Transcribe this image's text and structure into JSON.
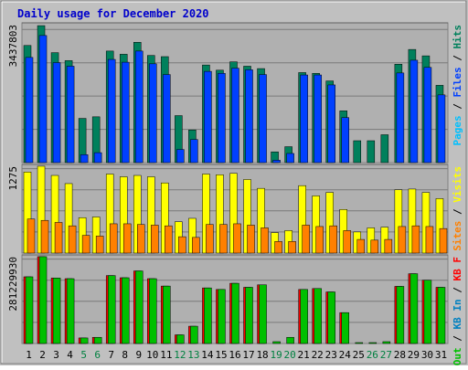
{
  "title": "Daily usage for December 2020",
  "colors": {
    "background": "#c0c0c0",
    "panel": "#b0b0b0",
    "grid": "#7a7a7a",
    "title": "#0000cc",
    "weekday_label": "#000000",
    "weekend_label": "#008040",
    "hits": "#00805c",
    "files": "#0040ff",
    "pages": "#00c0ff",
    "visits": "#ffff00",
    "sites": "#ff8000",
    "kb_in": "#0080c0",
    "kb_out": "#00c000",
    "kb_f": "#ff0000"
  },
  "chart_data": [
    {
      "type": "bar",
      "ylabel": "3437803",
      "legend": [
        {
          "text": "Hits",
          "color": "#00805c"
        },
        {
          "text": "Files",
          "color": "#0040ff"
        },
        {
          "text": "Pages",
          "color": "#00c0ff"
        }
      ],
      "legend_separator": " / ",
      "ymax": 3437803,
      "categories": [
        "1",
        "2",
        "3",
        "4",
        "5",
        "6",
        "7",
        "8",
        "9",
        "10",
        "11",
        "12",
        "13",
        "14",
        "15",
        "16",
        "17",
        "18",
        "19",
        "20",
        "21",
        "22",
        "23",
        "24",
        "25",
        "26",
        "27",
        "28",
        "29",
        "30",
        "31"
      ],
      "weekend": [
        5,
        6,
        12,
        13,
        19,
        20,
        26,
        27
      ],
      "series": [
        {
          "name": "Hits",
          "values": [
            2940000,
            3437803,
            2760000,
            2560000,
            1110000,
            1150000,
            2800000,
            2720000,
            3020000,
            2690000,
            2660000,
            1180000,
            820000,
            2450000,
            2320000,
            2530000,
            2420000,
            2360000,
            270000,
            400000,
            2260000,
            2240000,
            2050000,
            1300000,
            550000,
            550000,
            700000,
            2470000,
            2840000,
            2680000,
            1940000
          ]
        },
        {
          "name": "Files",
          "values": [
            2640000,
            3190000,
            2510000,
            2420000,
            200000,
            250000,
            2590000,
            2520000,
            2800000,
            2480000,
            2210000,
            330000,
            580000,
            2290000,
            2240000,
            2370000,
            2330000,
            2210000,
            60000,
            230000,
            2200000,
            2200000,
            1950000,
            1130000,
            0,
            0,
            0,
            2250000,
            2570000,
            2390000,
            1700000
          ]
        },
        {
          "name": "Pages",
          "values": [
            0,
            0,
            0,
            0,
            0,
            0,
            0,
            0,
            0,
            0,
            0,
            0,
            0,
            0,
            0,
            0,
            0,
            0,
            0,
            0,
            0,
            0,
            0,
            0,
            0,
            0,
            0,
            0,
            0,
            0,
            0
          ]
        }
      ],
      "gridlines": 4
    },
    {
      "type": "bar",
      "ylabel": "1275",
      "legend": [
        {
          "text": "Visits",
          "color": "#ffff00"
        },
        {
          "text": "Sites",
          "color": "#ff8000"
        }
      ],
      "legend_separator": " / ",
      "ymax": 1275,
      "categories": [
        "1",
        "2",
        "3",
        "4",
        "5",
        "6",
        "7",
        "8",
        "9",
        "10",
        "11",
        "12",
        "13",
        "14",
        "15",
        "16",
        "17",
        "18",
        "19",
        "20",
        "21",
        "22",
        "23",
        "24",
        "25",
        "26",
        "27",
        "28",
        "29",
        "30",
        "31"
      ],
      "series": [
        {
          "name": "Visits",
          "values": [
            1190,
            1275,
            1140,
            1020,
            520,
            530,
            1160,
            1120,
            1140,
            1120,
            1030,
            460,
            510,
            1160,
            1150,
            1170,
            1080,
            950,
            300,
            330,
            990,
            840,
            890,
            640,
            310,
            370,
            380,
            930,
            940,
            890,
            800
          ]
        },
        {
          "name": "Sites",
          "values": [
            500,
            480,
            450,
            400,
            260,
            250,
            430,
            430,
            420,
            410,
            400,
            240,
            230,
            420,
            420,
            430,
            410,
            370,
            170,
            170,
            410,
            390,
            400,
            330,
            200,
            190,
            200,
            390,
            400,
            390,
            360
          ]
        }
      ],
      "gridlines": 4
    },
    {
      "type": "bar",
      "ylabel": "281229930",
      "legend": [
        {
          "text": "KB F",
          "color": "#ff0000"
        },
        {
          "text": "KB In",
          "color": "#0080c0"
        },
        {
          "text": "KB Out",
          "color": "#00c000"
        }
      ],
      "legend_separator": " / ",
      "ymax": 281229930,
      "categories": [
        "1",
        "2",
        "3",
        "4",
        "5",
        "6",
        "7",
        "8",
        "9",
        "10",
        "11",
        "12",
        "13",
        "14",
        "15",
        "16",
        "17",
        "18",
        "19",
        "20",
        "21",
        "22",
        "23",
        "24",
        "25",
        "26",
        "27",
        "28",
        "29",
        "30",
        "31"
      ],
      "series": [
        {
          "name": "KB F",
          "values": [
            216000000,
            281229930,
            212000000,
            210000000,
            18000000,
            20000000,
            220000000,
            213000000,
            235000000,
            210000000,
            186000000,
            28000000,
            56000000,
            180000000,
            175000000,
            195000000,
            182000000,
            190000000,
            0,
            0,
            175000000,
            178000000,
            167000000,
            100000000,
            0,
            0,
            0,
            185000000,
            226000000,
            205000000,
            182000000
          ]
        },
        {
          "name": "KB In",
          "values": [
            0,
            0,
            0,
            0,
            0,
            0,
            0,
            0,
            0,
            0,
            0,
            0,
            0,
            0,
            0,
            0,
            0,
            0,
            0,
            0,
            0,
            0,
            0,
            0,
            0,
            0,
            0,
            0,
            0,
            0,
            0
          ]
        },
        {
          "name": "KB Out",
          "values": [
            216000000,
            281229930,
            212000000,
            210000000,
            18000000,
            20000000,
            220000000,
            213000000,
            235000000,
            210000000,
            186000000,
            28000000,
            56000000,
            180000000,
            175000000,
            195000000,
            182000000,
            190000000,
            6000000,
            20000000,
            175000000,
            178000000,
            167000000,
            100000000,
            3000000,
            3000000,
            6000000,
            185000000,
            226000000,
            205000000,
            182000000
          ]
        }
      ],
      "gridlines": 4
    }
  ]
}
